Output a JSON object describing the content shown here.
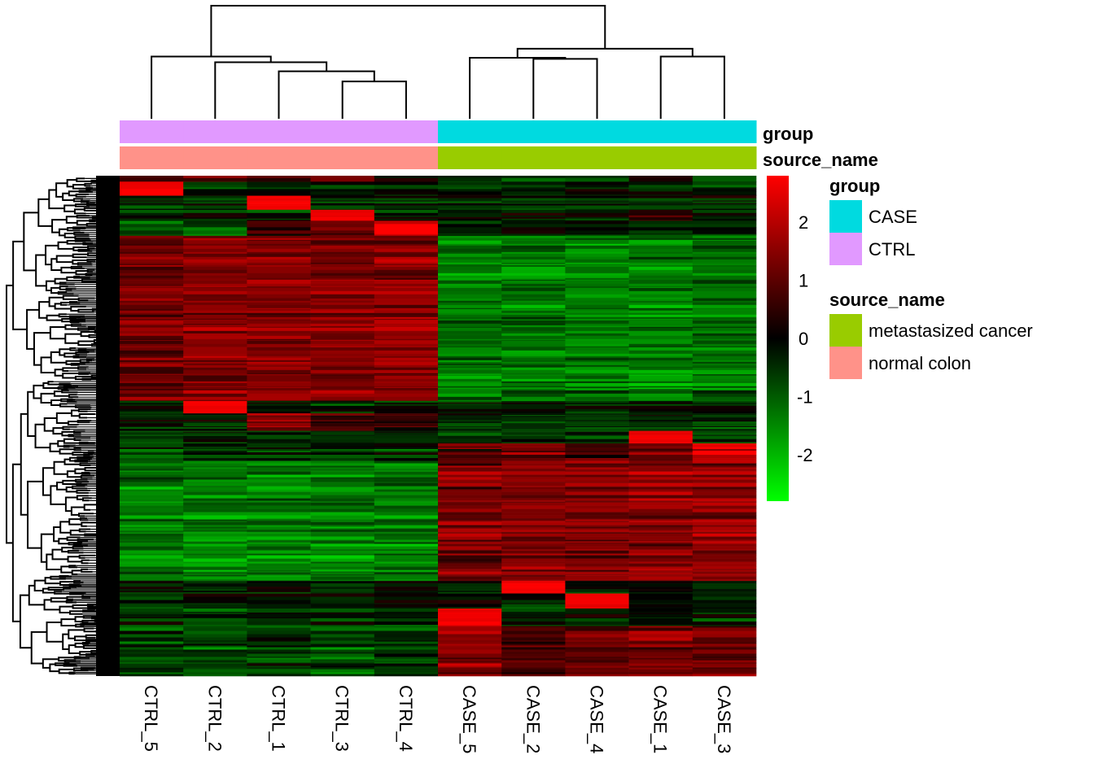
{
  "chart_data": {
    "type": "heatmap",
    "title": "",
    "columns": [
      "CTRL_5",
      "CTRL_2",
      "CTRL_1",
      "CTRL_3",
      "CTRL_4",
      "CASE_5",
      "CASE_2",
      "CASE_4",
      "CASE_1",
      "CASE_3"
    ],
    "column_annotations": {
      "group": [
        "CTRL",
        "CTRL",
        "CTRL",
        "CTRL",
        "CTRL",
        "CASE",
        "CASE",
        "CASE",
        "CASE",
        "CASE"
      ],
      "source_name": [
        "normal colon",
        "normal colon",
        "normal colon",
        "normal colon",
        "normal colon",
        "metastasized cancer",
        "metastasized cancer",
        "metastasized cancer",
        "metastasized cancer",
        "metastasized cancer"
      ]
    },
    "annotation_track_labels": [
      "group",
      "source_name"
    ],
    "column_dendrogram": {
      "merges": [
        {
          "left": "CTRL_3",
          "right": "CTRL_4",
          "height": 0.33
        },
        {
          "left": "CTRL_1",
          "right": "m1",
          "id": "m2",
          "height": 0.42
        },
        {
          "left": "CTRL_2",
          "right": "m2",
          "id": "m3",
          "height": 0.5
        },
        {
          "left": "CTRL_5",
          "right": "m3",
          "id": "m4",
          "height": 0.55
        },
        {
          "left": "CASE_2",
          "right": "CASE_4",
          "id": "m5",
          "height": 0.53
        },
        {
          "left": "CASE_5",
          "right": "m5",
          "id": "m6",
          "height": 0.54
        },
        {
          "left": "CASE_1",
          "right": "CASE_3",
          "id": "m7",
          "height": 0.55
        },
        {
          "left": "m6",
          "right": "m7",
          "id": "m8",
          "height": 0.62
        },
        {
          "left": "m4",
          "right": "m8",
          "id": "m9",
          "height": 1.0
        }
      ]
    },
    "row_dendrogram": "dense hierarchical clustering of genes (rows)",
    "color_scale": {
      "low": "#00FF00",
      "mid": "#000000",
      "high": "#FF0000",
      "range": [
        -2.8,
        2.8
      ],
      "ticks": [
        "2",
        "1",
        "0",
        "-1",
        "-2"
      ],
      "tick_values": [
        2,
        1,
        0,
        -1,
        -2
      ]
    },
    "row_blocks_note": "Rows grouped into bands; each band lists approximate mean z-score per column (column order as above). Fraction = share of all rows.",
    "row_blocks": [
      {
        "frac": 0.012,
        "values": [
          0.8,
          1.2,
          1.0,
          1.3,
          0.3,
          -0.6,
          -0.5,
          -0.7,
          0.3,
          -0.6
        ]
      },
      {
        "frac": 0.028,
        "values": [
          2.8,
          -0.3,
          -0.2,
          -0.3,
          -0.3,
          -0.3,
          -0.3,
          -0.3,
          -0.4,
          -0.3
        ]
      },
      {
        "frac": 0.028,
        "values": [
          -0.3,
          -0.3,
          2.8,
          -0.3,
          -0.3,
          -0.3,
          -0.4,
          -0.3,
          -0.3,
          -0.3
        ]
      },
      {
        "frac": 0.022,
        "values": [
          -0.5,
          -0.4,
          -0.4,
          2.8,
          -0.4,
          -0.3,
          -0.3,
          -0.4,
          0.5,
          -0.3
        ]
      },
      {
        "frac": 0.03,
        "values": [
          -0.9,
          -0.9,
          0.6,
          1.0,
          2.5,
          -0.4,
          -0.3,
          -0.3,
          -0.3,
          -0.4
        ]
      },
      {
        "frac": 0.33,
        "values": [
          1.2,
          1.4,
          1.4,
          1.4,
          1.5,
          -1.3,
          -1.3,
          -1.3,
          -1.4,
          -1.2
        ]
      },
      {
        "frac": 0.025,
        "values": [
          -0.3,
          2.8,
          -0.3,
          -0.4,
          -0.4,
          -0.3,
          -0.3,
          -0.3,
          -0.4,
          -0.3
        ]
      },
      {
        "frac": 0.035,
        "values": [
          -0.3,
          -0.2,
          1.4,
          0.8,
          0.6,
          -0.4,
          -0.5,
          -0.5,
          -0.2,
          -0.5
        ]
      },
      {
        "frac": 0.025,
        "values": [
          -0.4,
          -0.3,
          -0.3,
          -0.4,
          -0.3,
          -0.4,
          -0.3,
          -0.3,
          2.8,
          -0.3
        ]
      },
      {
        "frac": 0.035,
        "values": [
          -0.6,
          -0.6,
          -0.5,
          -0.5,
          -0.6,
          0.8,
          1.2,
          0.8,
          1.0,
          2.5
        ]
      },
      {
        "frac": 0.24,
        "values": [
          -1.3,
          -1.4,
          -1.4,
          -1.4,
          -1.3,
          1.3,
          1.4,
          1.3,
          1.5,
          1.5
        ]
      },
      {
        "frac": 0.025,
        "values": [
          -0.4,
          -0.4,
          -0.4,
          -0.4,
          -0.3,
          -0.3,
          2.8,
          -0.3,
          -0.4,
          -0.3
        ]
      },
      {
        "frac": 0.03,
        "values": [
          -0.5,
          -0.4,
          -0.4,
          -0.5,
          -0.4,
          -0.3,
          -0.4,
          2.8,
          -0.3,
          -0.3
        ]
      },
      {
        "frac": 0.035,
        "values": [
          -0.5,
          -0.6,
          -0.5,
          -0.5,
          -0.5,
          2.8,
          -0.3,
          -0.3,
          -0.2,
          -0.4
        ]
      },
      {
        "frac": 0.1,
        "values": [
          -0.8,
          -0.9,
          -0.7,
          -0.9,
          -0.8,
          1.4,
          0.7,
          0.9,
          1.2,
          1.0
        ]
      }
    ]
  },
  "legend": {
    "color_key_ticks": [
      "2",
      "1",
      "0",
      "-1",
      "-2"
    ],
    "groups": [
      {
        "title": "group",
        "items": [
          {
            "label": "CASE",
            "color": "#00DAE0"
          },
          {
            "label": "CTRL",
            "color": "#E199FF"
          }
        ]
      },
      {
        "title": "source_name",
        "items": [
          {
            "label": "metastasized cancer",
            "color": "#99CC00"
          },
          {
            "label": "normal colon",
            "color": "#FF9289"
          }
        ]
      }
    ]
  },
  "annotation_colors": {
    "CASE": "#00DAE0",
    "CTRL": "#E199FF",
    "metastasized cancer": "#99CC00",
    "normal colon": "#FF9289"
  }
}
